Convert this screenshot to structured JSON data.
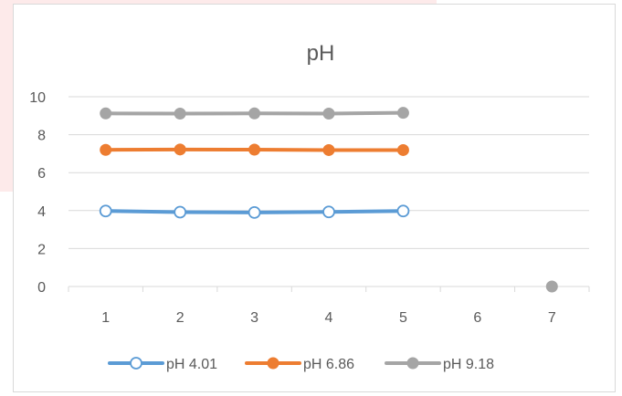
{
  "chart_data": {
    "type": "line",
    "title": "pH",
    "xlabel": "",
    "ylabel": "",
    "categories": [
      "1",
      "2",
      "3",
      "4",
      "5",
      "6",
      "7"
    ],
    "ylim": [
      0,
      10
    ],
    "yticks": [
      "0",
      "2",
      "4",
      "6",
      "8",
      "10"
    ],
    "grid": true,
    "legend_position": "bottom",
    "series": [
      {
        "name": "pH 4.01",
        "color": "#5b9bd5",
        "marker": "open-circle",
        "values": [
          3.98,
          3.92,
          3.9,
          3.93,
          3.98,
          null,
          null
        ]
      },
      {
        "name": "pH 6.86",
        "color": "#ed7d31",
        "marker": "filled-circle",
        "values": [
          7.2,
          7.22,
          7.21,
          7.19,
          7.19,
          null,
          null
        ]
      },
      {
        "name": "pH 9.18",
        "color": "#a5a5a5",
        "marker": "filled-circle",
        "values": [
          9.12,
          9.11,
          9.12,
          9.11,
          9.15,
          null,
          0
        ]
      }
    ]
  }
}
